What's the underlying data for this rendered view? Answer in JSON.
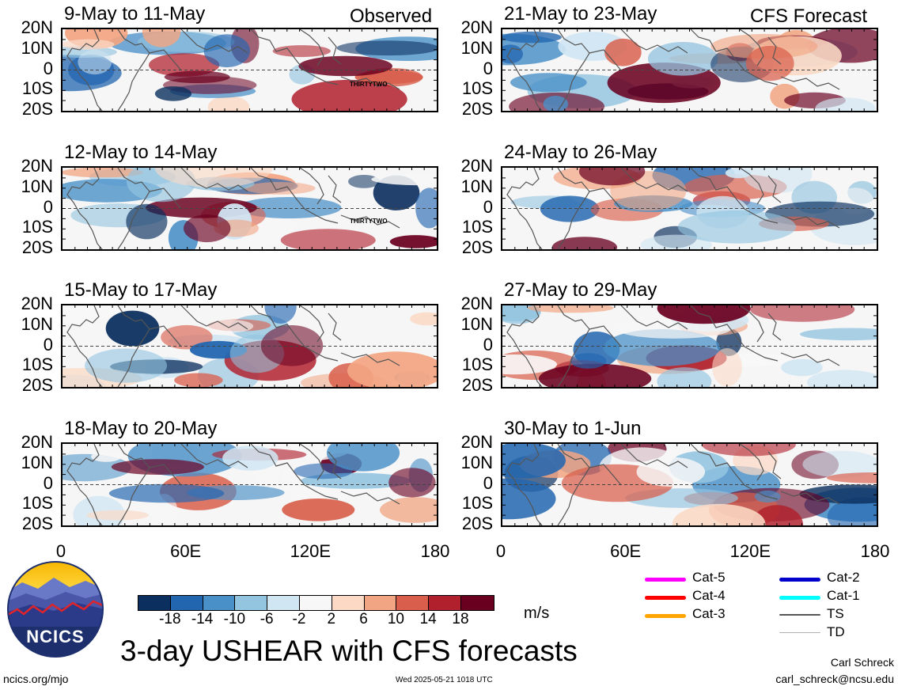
{
  "header": {
    "observed_label": "Observed",
    "forecast_label": "CFS Forecast"
  },
  "panels": [
    {
      "title": "9-May to 11-May",
      "storm_label": "THIRTYTWO"
    },
    {
      "title": "12-May to 14-May",
      "storm_label": "THIRTYTWO"
    },
    {
      "title": "15-May to 17-May",
      "storm_label": ""
    },
    {
      "title": "18-May to 20-May",
      "storm_label": ""
    },
    {
      "title": "21-May to 23-May",
      "storm_label": ""
    },
    {
      "title": "24-May to 26-May",
      "storm_label": ""
    },
    {
      "title": "27-May to 29-May",
      "storm_label": ""
    },
    {
      "title": "30-May to 1-Jun",
      "storm_label": ""
    }
  ],
  "lat_labels": [
    "20N",
    "10N",
    "0",
    "10S",
    "20S"
  ],
  "lon_labels": [
    "0",
    "60E",
    "120E",
    "180"
  ],
  "colorbar": {
    "colors": [
      "#0b2f5e",
      "#2366b0",
      "#4a90c8",
      "#93c4e0",
      "#d0e6f3",
      "#f7f7f7",
      "#fbd9c5",
      "#f2a582",
      "#d95f4c",
      "#b0202d",
      "#6a0020"
    ],
    "tick_labels": [
      "-18",
      "-14",
      "-10",
      "-6",
      "-2",
      "2",
      "6",
      "10",
      "14",
      "18"
    ],
    "units": "m/s"
  },
  "legend": [
    {
      "label": "Cat-5",
      "color": "#ff00ff"
    },
    {
      "label": "Cat-4",
      "color": "#ff0000"
    },
    {
      "label": "Cat-3",
      "color": "#ffa500"
    },
    {
      "label": "Cat-2",
      "color": "#0000cd"
    },
    {
      "label": "Cat-1",
      "color": "#00ffff"
    },
    {
      "label": "TS",
      "color": "#555555"
    },
    {
      "label": "TD",
      "color": "#b0b0b0"
    }
  ],
  "logo_text": "NCICS",
  "main_title": "3-day USHEAR with CFS forecasts",
  "footer": {
    "left": "ncics.org/mjo",
    "center": "Wed 2025-05-21 1018 UTC",
    "author": "Carl Schreck",
    "email": "carl_schreck@ncsu.edu"
  }
}
